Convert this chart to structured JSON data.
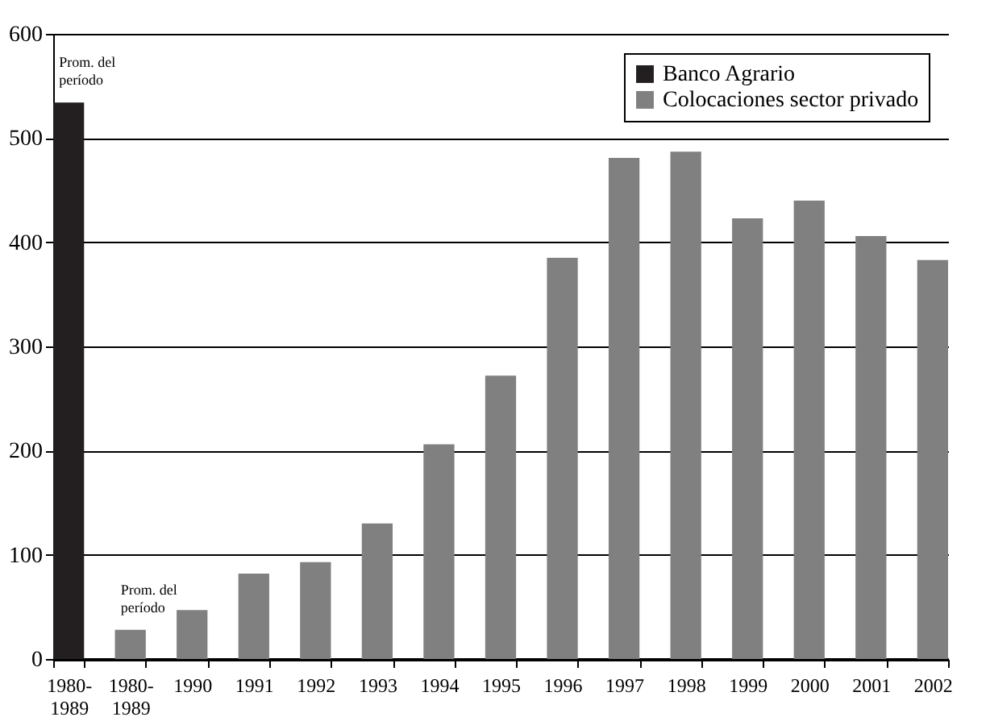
{
  "chart_data": {
    "type": "bar",
    "categories": [
      "1980-\n1989",
      "1980-\n1989",
      "1990",
      "1991",
      "1992",
      "1993",
      "1994",
      "1995",
      "1996",
      "1997",
      "1998",
      "1999",
      "2000",
      "2001",
      "2002"
    ],
    "series": [
      {
        "name": "Banco Agrario",
        "color": "#231f20",
        "values": [
          534,
          null,
          null,
          null,
          null,
          null,
          null,
          null,
          null,
          null,
          null,
          null,
          null,
          null,
          null
        ]
      },
      {
        "name": "Colocaciones sector privado",
        "color": "#808080",
        "values": [
          null,
          28,
          47,
          82,
          93,
          130,
          206,
          272,
          385,
          481,
          487,
          423,
          440,
          406,
          383
        ]
      }
    ],
    "ylim": [
      0,
      600
    ],
    "yticks": [
      0,
      100,
      200,
      300,
      400,
      500,
      600
    ],
    "grid": "y",
    "legend": "top right",
    "annotations": [
      "Prom. del\nperíodo",
      "Prom. del\nperíodo"
    ]
  }
}
